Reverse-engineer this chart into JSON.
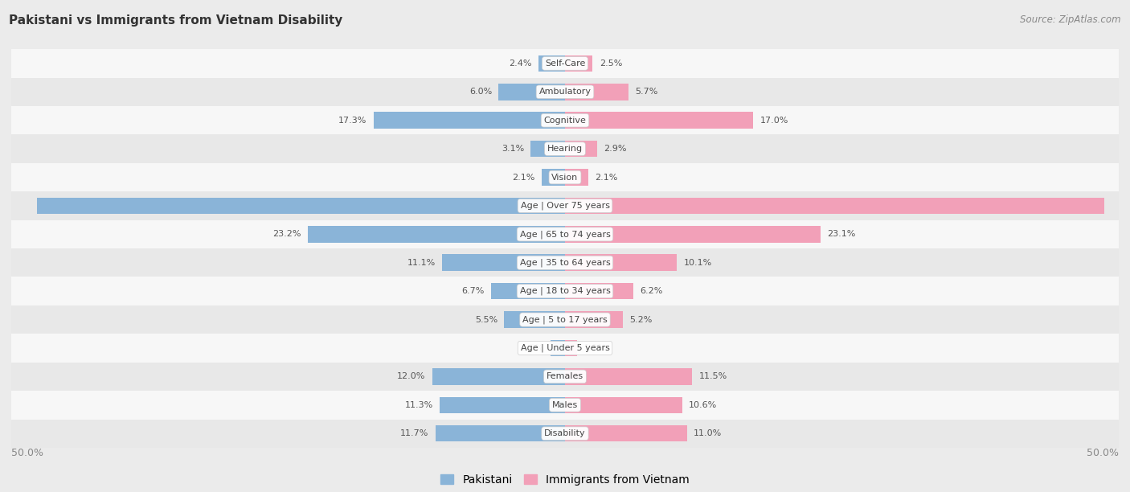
{
  "title": "Pakistani vs Immigrants from Vietnam Disability",
  "source": "Source: ZipAtlas.com",
  "categories": [
    "Disability",
    "Males",
    "Females",
    "Age | Under 5 years",
    "Age | 5 to 17 years",
    "Age | 18 to 34 years",
    "Age | 35 to 64 years",
    "Age | 65 to 74 years",
    "Age | Over 75 years",
    "Vision",
    "Hearing",
    "Cognitive",
    "Ambulatory",
    "Self-Care"
  ],
  "pakistani": [
    11.7,
    11.3,
    12.0,
    1.3,
    5.5,
    6.7,
    11.1,
    23.2,
    47.7,
    2.1,
    3.1,
    17.3,
    6.0,
    2.4
  ],
  "vietnam": [
    11.0,
    10.6,
    11.5,
    1.1,
    5.2,
    6.2,
    10.1,
    23.1,
    48.7,
    2.1,
    2.9,
    17.0,
    5.7,
    2.5
  ],
  "pakistani_color": "#8ab4d8",
  "vietnam_color": "#f2a0b8",
  "axis_max": 50.0,
  "background_color": "#ebebeb",
  "row_bg_color": "#f7f7f7",
  "row_alt_color": "#e8e8e8",
  "legend_pakistani": "Pakistani",
  "legend_vietnam": "Immigrants from Vietnam"
}
